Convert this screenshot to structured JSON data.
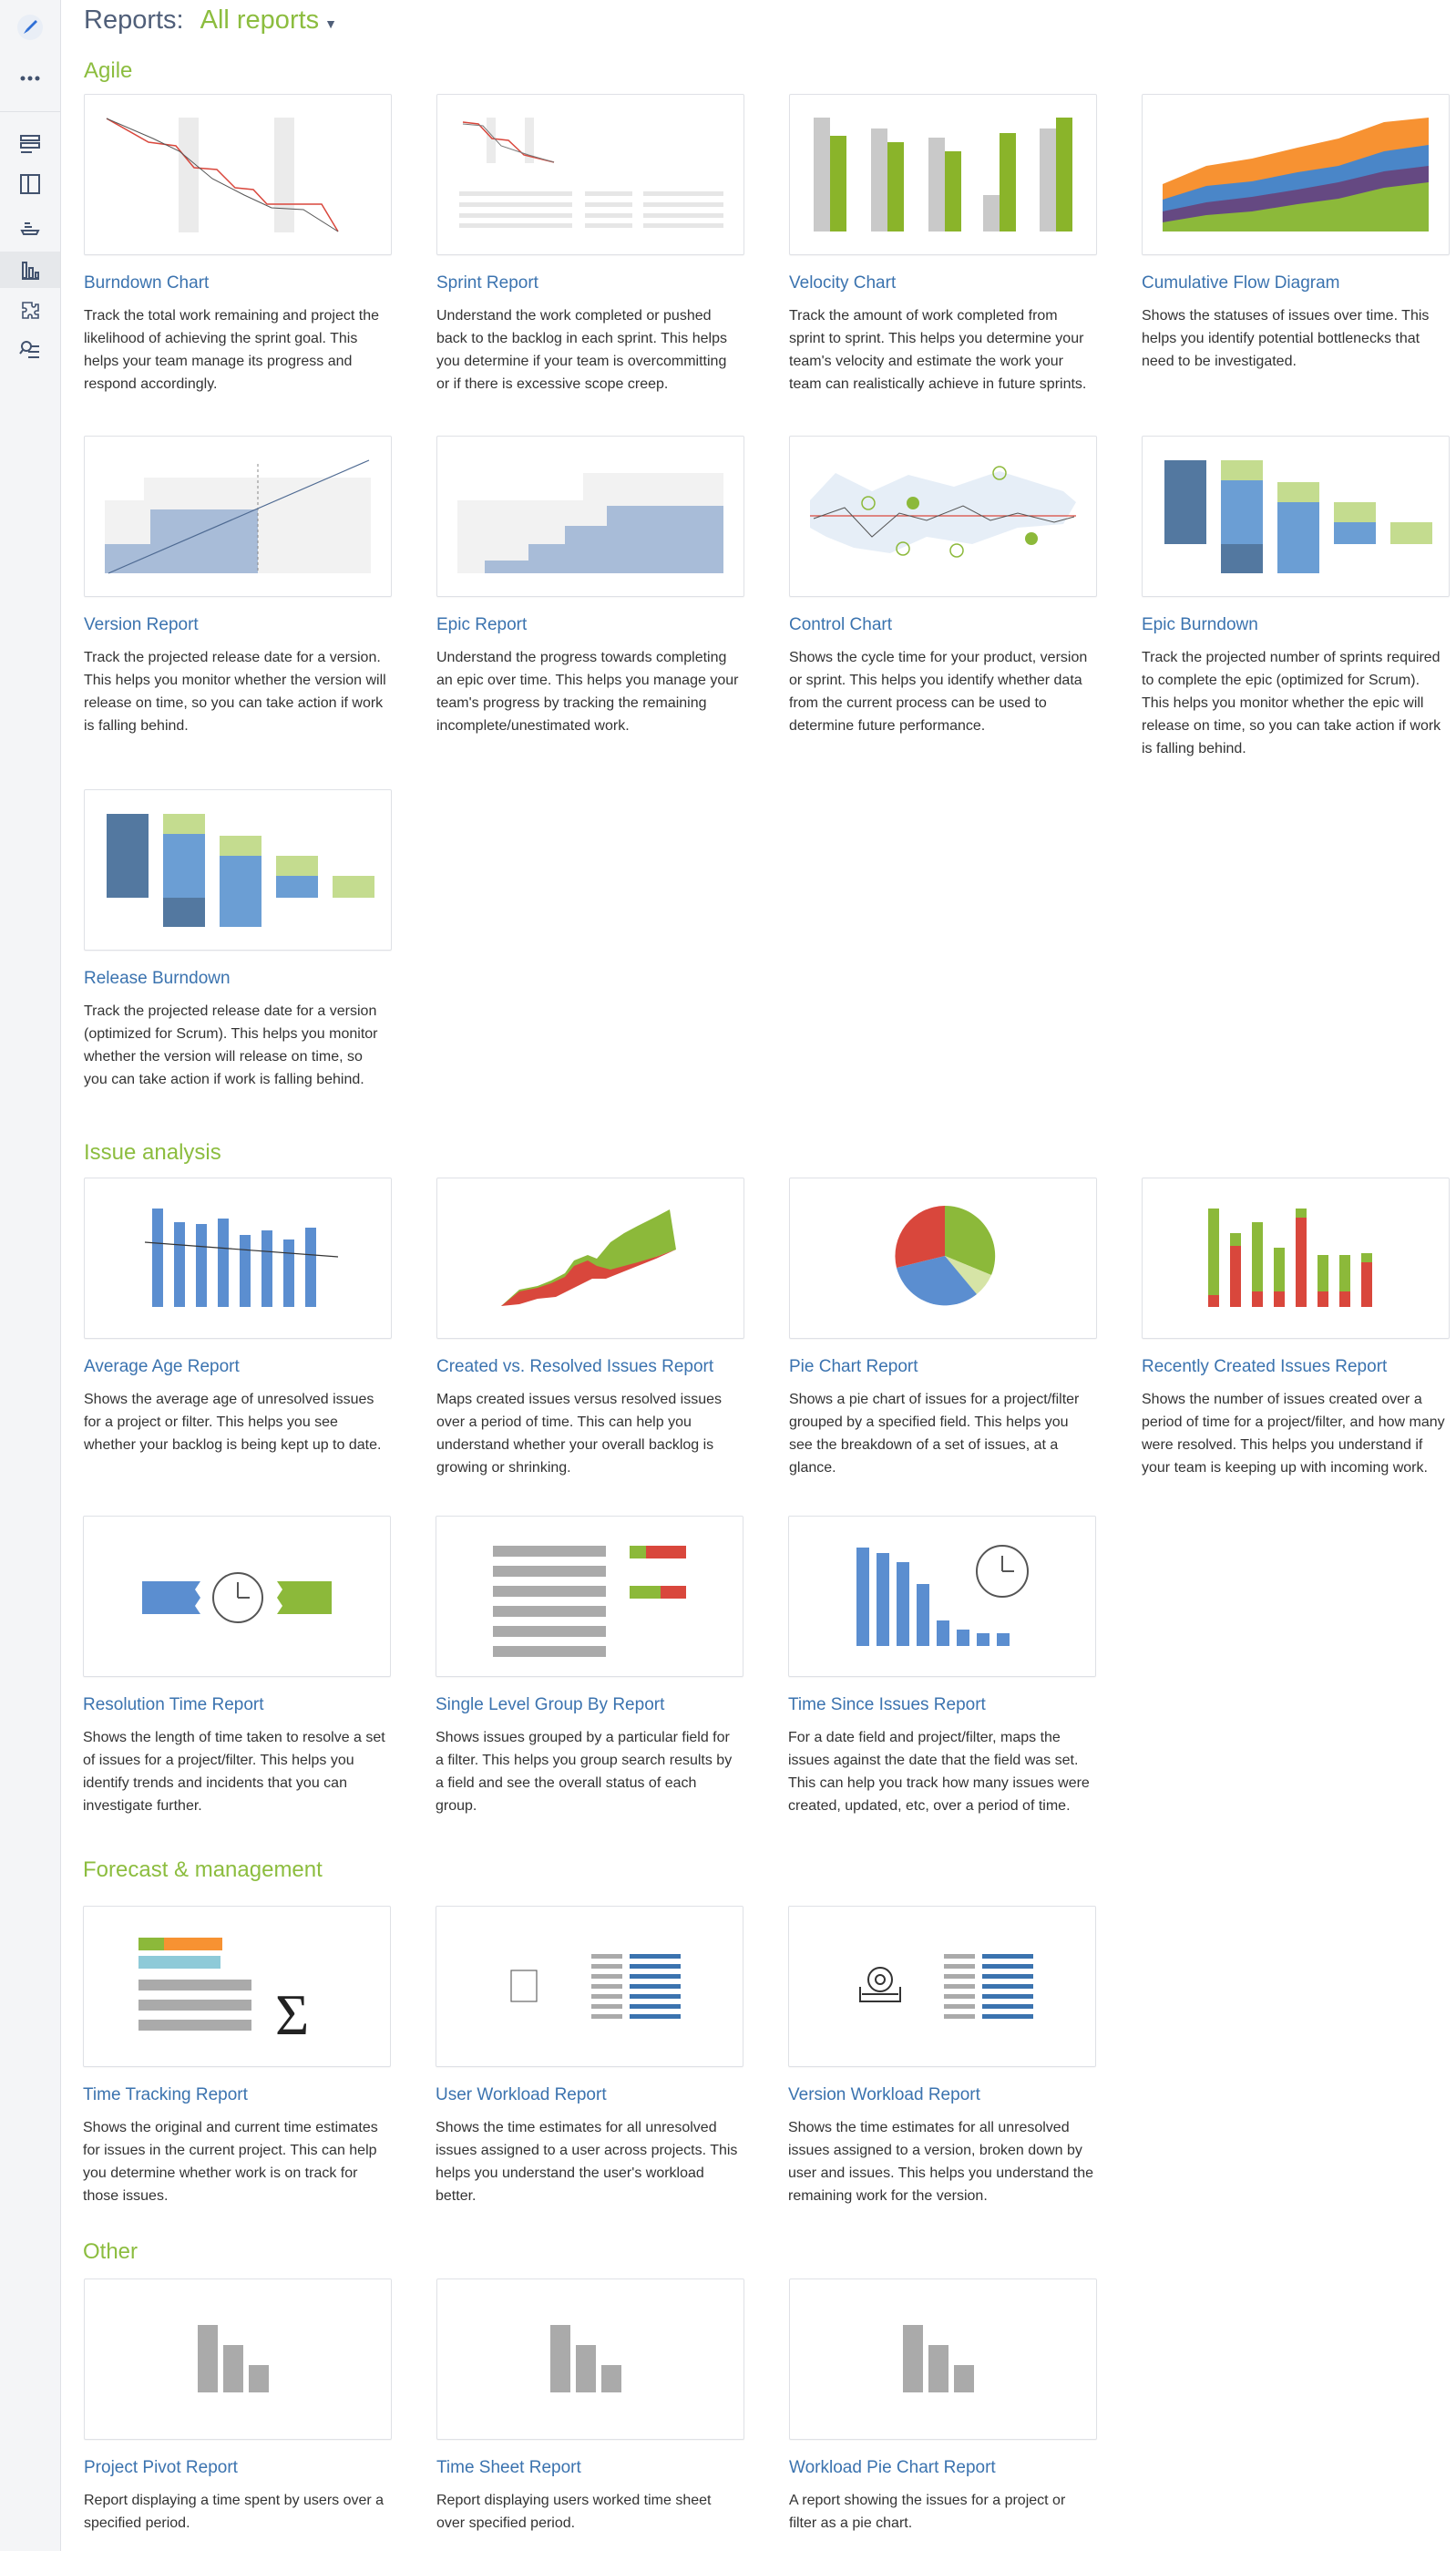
{
  "header": {
    "label": "Reports:",
    "selector": "All reports"
  },
  "sidebar": {
    "icons": [
      "rocket-icon",
      "more-icon",
      "backlog-icon",
      "board-icon",
      "releases-icon",
      "reports-icon",
      "components-icon",
      "issues-search-icon"
    ],
    "active": "reports-icon"
  },
  "sections": {
    "agile": "Agile",
    "issue_analysis": "Issue analysis",
    "forecast": "Forecast & management",
    "other": "Other"
  },
  "cards": {
    "burndown": {
      "title": "Burndown Chart",
      "desc": "Track the total work remaining and project the likelihood of achieving the sprint goal. This helps your team manage its progress and respond accordingly."
    },
    "sprint": {
      "title": "Sprint Report",
      "desc": "Understand the work completed or pushed back to the backlog in each sprint. This helps you determine if your team is overcommitting or if there is excessive scope creep."
    },
    "velocity": {
      "title": "Velocity Chart",
      "desc": "Track the amount of work completed from sprint to sprint. This helps you determine your team's velocity and estimate the work your team can realistically achieve in future sprints."
    },
    "cfd": {
      "title": "Cumulative Flow Diagram",
      "desc": "Shows the statuses of issues over time. This helps you identify potential bottlenecks that need to be investigated."
    },
    "version": {
      "title": "Version Report",
      "desc": "Track the projected release date for a version. This helps you monitor whether the version will release on time, so you can take action if work is falling behind."
    },
    "epic": {
      "title": "Epic Report",
      "desc": "Understand the progress towards completing an epic over time. This helps you manage your team's progress by tracking the remaining incomplete/unestimated work."
    },
    "control": {
      "title": "Control Chart",
      "desc": "Shows the cycle time for your product, version or sprint. This helps you identify whether data from the current process can be used to determine future performance."
    },
    "epic_burndown": {
      "title": "Epic Burndown",
      "desc": "Track the projected number of sprints required to complete the epic (optimized for Scrum). This helps you monitor whether the epic will release on time, so you can take action if work is falling behind."
    },
    "release_burndown": {
      "title": "Release Burndown",
      "desc": "Track the projected release date for a version (optimized for Scrum). This helps you monitor whether the version will release on time, so you can take action if work is falling behind."
    },
    "average_age": {
      "title": "Average Age Report",
      "desc": "Shows the average age of unresolved issues for a project or filter. This helps you see whether your backlog is being kept up to date."
    },
    "created_resolved": {
      "title": "Created vs. Resolved Issues Report",
      "desc": "Maps created issues versus resolved issues over a period of time. This can help you understand whether your overall backlog is growing or shrinking."
    },
    "pie": {
      "title": "Pie Chart Report",
      "desc": "Shows a pie chart of issues for a project/filter grouped by a specified field. This helps you see the breakdown of a set of issues, at a glance."
    },
    "recently_created": {
      "title": "Recently Created Issues Report",
      "desc": "Shows the number of issues created over a period of time for a project/filter, and how many were resolved. This helps you understand if your team is keeping up with incoming work."
    },
    "resolution_time": {
      "title": "Resolution Time Report",
      "desc": "Shows the length of time taken to resolve a set of issues for a project/filter. This helps you identify trends and incidents that you can investigate further."
    },
    "single_level": {
      "title": "Single Level Group By Report",
      "desc": "Shows issues grouped by a particular field for a filter. This helps you group search results by a field and see the overall status of each group."
    },
    "time_since": {
      "title": "Time Since Issues Report",
      "desc": "For a date field and project/filter, maps the issues against the date that the field was set. This can help you track how many issues were created, updated, etc, over a period of time."
    },
    "time_tracking": {
      "title": "Time Tracking Report",
      "desc": "Shows the original and current time estimates for issues in the current project. This can help you determine whether work is on track for those issues."
    },
    "user_workload": {
      "title": "User Workload Report",
      "desc": "Shows the time estimates for all unresolved issues assigned to a user across projects. This helps you understand the user's workload better."
    },
    "version_workload": {
      "title": "Version Workload Report",
      "desc": "Shows the time estimates for all unresolved issues assigned to a version, broken down by user and issues. This helps you understand the remaining work for the version."
    },
    "project_pivot": {
      "title": "Project Pivot Report",
      "desc": "Report displaying a time spent by users over a specified period."
    },
    "time_sheet": {
      "title": "Time Sheet Report",
      "desc": "Report displaying users worked time sheet over specified period."
    },
    "workload_pie": {
      "title": "Workload Pie Chart Report",
      "desc": "A report showing the issues for a project or filter as a pie chart."
    }
  },
  "colors": {
    "accent_green": "#8cbd3f",
    "link_blue": "#3b73af",
    "header_gray": "#505f79"
  }
}
